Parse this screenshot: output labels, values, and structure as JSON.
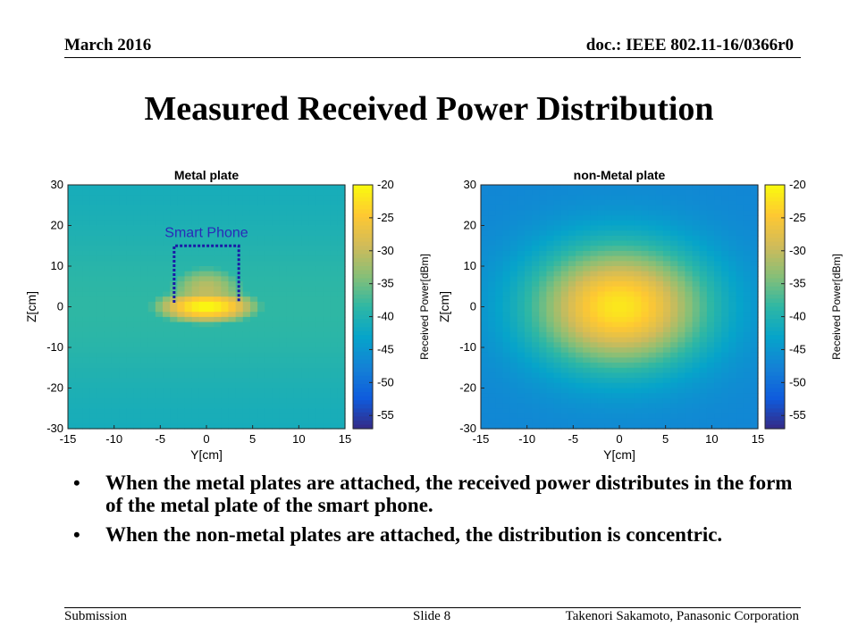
{
  "header": {
    "date": "March 2016",
    "doc": "doc.: IEEE 802.11-16/0366r0"
  },
  "title": "Measured Received Power Distribution",
  "chart_data": [
    {
      "type": "heatmap",
      "title": "Metal plate",
      "xlabel": "Y[cm]",
      "ylabel": "Z[cm]",
      "xlim": [
        -15,
        15
      ],
      "ylim": [
        -30,
        30
      ],
      "xticks": [
        -15,
        -10,
        -5,
        0,
        5,
        10,
        15
      ],
      "yticks": [
        30,
        20,
        10,
        0,
        -10,
        -20,
        -30
      ],
      "colorbar": {
        "label": "Received Power[dBm]",
        "range": [
          -57,
          -20
        ],
        "ticks": [
          -20,
          -25,
          -30,
          -35,
          -40,
          -45,
          -50,
          -55
        ]
      },
      "peak": {
        "y": 0,
        "z": 0,
        "value_dBm": -22
      },
      "annotation": {
        "text": "Smart Phone",
        "box_y": [
          -3.5,
          3.5
        ],
        "box_z": [
          1,
          15
        ]
      }
    },
    {
      "type": "heatmap",
      "title": "non-Metal plate",
      "xlabel": "Y[cm]",
      "ylabel": "Z[cm]",
      "xlim": [
        -15,
        15
      ],
      "ylim": [
        -30,
        30
      ],
      "xticks": [
        -15,
        -10,
        -5,
        0,
        5,
        10,
        15
      ],
      "yticks": [
        30,
        20,
        10,
        0,
        -10,
        -20,
        -30
      ],
      "colorbar": {
        "label": "Received Power[dBm]",
        "range": [
          -57,
          -20
        ],
        "ticks": [
          -20,
          -25,
          -30,
          -35,
          -40,
          -45,
          -50,
          -55
        ]
      },
      "peak": {
        "y": 0,
        "z": 0,
        "value_dBm": -25
      }
    }
  ],
  "bullets": [
    "When the metal plates are attached, the received power distributes in the form of the metal plate of the smart phone.",
    "When the non-metal plates are attached, the distribution is concentric."
  ],
  "footer": {
    "left": "Submission",
    "mid": "Slide 8",
    "right": "Takenori Sakamoto, Panasonic Corporation"
  },
  "colors": {
    "parula": [
      "#352a87",
      "#0f5cdd",
      "#1481d6",
      "#06a4ca",
      "#2eb7a4",
      "#87bf77",
      "#d1bb59",
      "#fec832",
      "#f9fb0e"
    ],
    "annotation": "#1a1aa6"
  }
}
